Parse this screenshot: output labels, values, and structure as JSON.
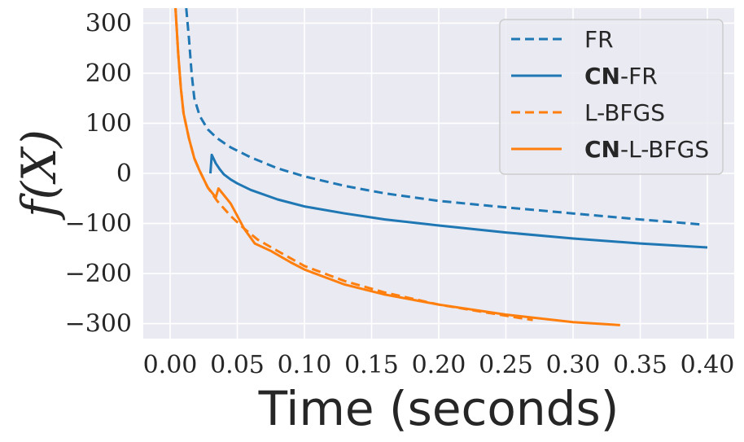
{
  "chart_data": {
    "type": "line",
    "xlabel": "Time (seconds)",
    "ylabel": "f(X)",
    "xlim": [
      -0.02,
      0.42
    ],
    "ylim": [
      -330,
      330
    ],
    "xticks": [
      0.0,
      0.05,
      0.1,
      0.15,
      0.2,
      0.25,
      0.3,
      0.35,
      0.4
    ],
    "xtick_labels": [
      "0.00",
      "0.05",
      "0.10",
      "0.15",
      "0.20",
      "0.25",
      "0.30",
      "0.35",
      "0.40"
    ],
    "yticks": [
      300,
      200,
      100,
      0,
      -100,
      -200,
      -300
    ],
    "ytick_labels": [
      "300",
      "200",
      "100",
      "0",
      "−100",
      "−200",
      "−300"
    ],
    "grid": true,
    "legend_position": "top-right",
    "series": [
      {
        "name": "FR",
        "name_bold": "",
        "name_rest": "FR",
        "color": "#1f77b4",
        "style": "dashed",
        "x": [
          0.012,
          0.014,
          0.016,
          0.018,
          0.022,
          0.028,
          0.035,
          0.045,
          0.06,
          0.08,
          0.1,
          0.13,
          0.16,
          0.2,
          0.25,
          0.3,
          0.35,
          0.395
        ],
        "y": [
          330,
          270,
          200,
          150,
          115,
          88,
          70,
          52,
          32,
          10,
          -6,
          -25,
          -40,
          -55,
          -68,
          -80,
          -92,
          -102
        ]
      },
      {
        "name": "CN-FR",
        "name_bold": "CN",
        "name_rest": "-FR",
        "color": "#1f77b4",
        "style": "solid",
        "x": [
          0.03,
          0.031,
          0.034,
          0.037,
          0.04,
          0.045,
          0.05,
          0.06,
          0.08,
          0.1,
          0.13,
          0.16,
          0.2,
          0.25,
          0.3,
          0.35,
          0.4
        ],
        "y": [
          0,
          37,
          20,
          8,
          -2,
          -12,
          -20,
          -33,
          -52,
          -66,
          -80,
          -92,
          -104,
          -118,
          -130,
          -140,
          -148
        ]
      },
      {
        "name": "L-BFGS",
        "name_bold": "",
        "name_rest": "L-BFGS",
        "color": "#ff7f0e",
        "style": "dashed",
        "x": [
          0.004,
          0.006,
          0.008,
          0.01,
          0.014,
          0.018,
          0.022,
          0.028,
          0.035,
          0.045,
          0.055,
          0.065,
          0.08,
          0.1,
          0.13,
          0.16,
          0.2,
          0.24,
          0.27
        ],
        "y": [
          330,
          240,
          170,
          120,
          70,
          30,
          5,
          -28,
          -55,
          -85,
          -110,
          -132,
          -155,
          -185,
          -215,
          -238,
          -262,
          -280,
          -293
        ]
      },
      {
        "name": "CN-L-BFGS",
        "name_bold": "CN",
        "name_rest": "-L-BFGS",
        "color": "#ff7f0e",
        "style": "solid",
        "x": [
          0.004,
          0.006,
          0.008,
          0.01,
          0.014,
          0.018,
          0.022,
          0.028,
          0.034,
          0.036,
          0.045,
          0.055,
          0.063,
          0.075,
          0.09,
          0.1,
          0.13,
          0.16,
          0.2,
          0.25,
          0.3,
          0.335
        ],
        "y": [
          330,
          240,
          170,
          120,
          70,
          30,
          5,
          -28,
          -48,
          -30,
          -60,
          -110,
          -140,
          -155,
          -178,
          -192,
          -222,
          -242,
          -262,
          -282,
          -297,
          -303
        ]
      }
    ]
  }
}
